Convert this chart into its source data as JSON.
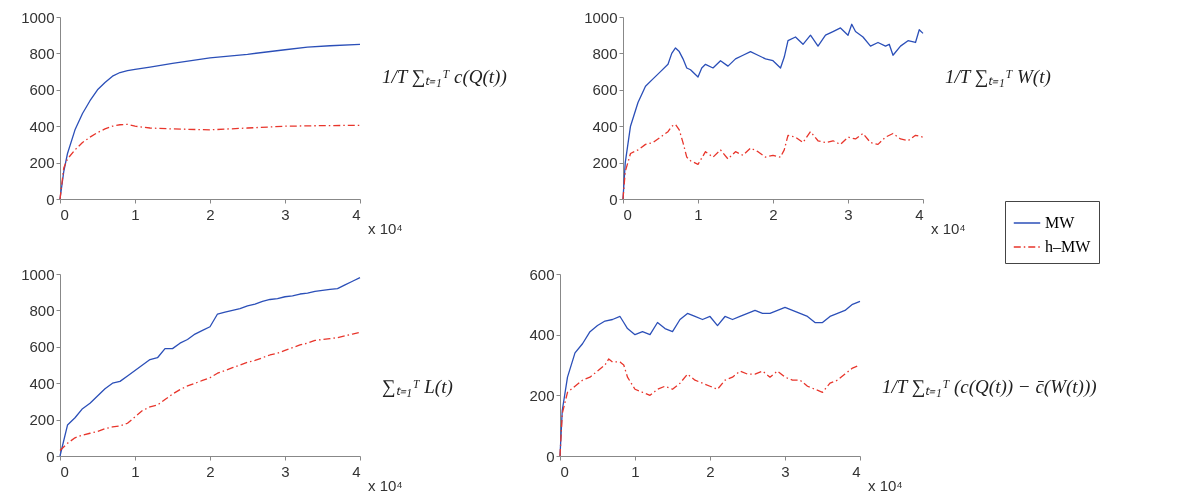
{
  "chart_data": [
    {
      "type": "line",
      "ylabel": "1/T ∑ₜ₌₁ᵀ c(Q(t))",
      "annotations": [
        "x 10⁴"
      ],
      "xlim": [
        0,
        4
      ],
      "xticks": [
        0,
        1,
        2,
        3,
        4
      ],
      "ylim": [
        0,
        1000
      ],
      "yticks": [
        0,
        200,
        400,
        600,
        800,
        1000
      ],
      "grid": false,
      "legend": false,
      "series": [
        {
          "color": "#2b4fb8",
          "line_style": "solid",
          "x": [
            0,
            0.05,
            0.1,
            0.2,
            0.3,
            0.4,
            0.5,
            0.6,
            0.7,
            0.8,
            0.9,
            1.0,
            1.2,
            1.5,
            2.0,
            2.5,
            3.0,
            3.3,
            3.6,
            4.0
          ],
          "values": [
            0,
            150,
            250,
            380,
            470,
            540,
            600,
            640,
            675,
            695,
            705,
            712,
            725,
            745,
            775,
            795,
            820,
            835,
            842,
            850
          ]
        },
        {
          "color": "#e8352b",
          "line_style": "dashed",
          "x": [
            0,
            0.05,
            0.1,
            0.2,
            0.3,
            0.4,
            0.5,
            0.6,
            0.7,
            0.8,
            0.9,
            1.0,
            1.2,
            1.5,
            2.0,
            2.5,
            3.0,
            3.5,
            4.0
          ],
          "values": [
            0,
            170,
            220,
            270,
            310,
            340,
            365,
            385,
            400,
            408,
            410,
            400,
            390,
            385,
            380,
            390,
            400,
            403,
            405
          ]
        }
      ]
    },
    {
      "type": "line",
      "ylabel": "1/T ∑ₜ₌₁ᵀ W(t)",
      "annotations": [
        "x 10⁴"
      ],
      "xlim": [
        0,
        4
      ],
      "xticks": [
        0,
        1,
        2,
        3,
        4
      ],
      "ylim": [
        0,
        1000
      ],
      "yticks": [
        0,
        200,
        400,
        600,
        800,
        1000
      ],
      "grid": false,
      "legend": "right",
      "series": [
        {
          "name": "MW",
          "color": "#2b4fb8",
          "line_style": "solid",
          "x": [
            0,
            0.03,
            0.1,
            0.2,
            0.3,
            0.4,
            0.5,
            0.6,
            0.65,
            0.7,
            0.75,
            0.8,
            0.85,
            0.9,
            1.0,
            1.05,
            1.1,
            1.2,
            1.3,
            1.4,
            1.5,
            1.6,
            1.7,
            1.8,
            1.9,
            2.0,
            2.1,
            2.15,
            2.2,
            2.3,
            2.4,
            2.5,
            2.6,
            2.7,
            2.8,
            2.9,
            3.0,
            3.05,
            3.1,
            3.2,
            3.3,
            3.4,
            3.5,
            3.55,
            3.6,
            3.7,
            3.8,
            3.9,
            3.95,
            4.0
          ],
          "values": [
            0,
            200,
            400,
            530,
            620,
            660,
            700,
            740,
            800,
            830,
            810,
            770,
            720,
            710,
            670,
            720,
            740,
            720,
            760,
            730,
            770,
            790,
            810,
            790,
            770,
            760,
            720,
            780,
            870,
            890,
            850,
            900,
            840,
            900,
            920,
            940,
            900,
            960,
            920,
            890,
            840,
            860,
            840,
            850,
            790,
            840,
            870,
            860,
            930,
            910
          ]
        },
        {
          "name": "h–MW",
          "color": "#e8352b",
          "line_style": "dashed",
          "x": [
            0,
            0.03,
            0.1,
            0.2,
            0.3,
            0.4,
            0.5,
            0.6,
            0.65,
            0.7,
            0.75,
            0.8,
            0.85,
            0.9,
            1.0,
            1.1,
            1.2,
            1.3,
            1.4,
            1.5,
            1.6,
            1.7,
            1.8,
            1.9,
            2.0,
            2.1,
            2.15,
            2.2,
            2.3,
            2.4,
            2.5,
            2.6,
            2.7,
            2.8,
            2.9,
            3.0,
            3.1,
            3.2,
            3.3,
            3.4,
            3.5,
            3.6,
            3.7,
            3.8,
            3.9,
            4.0
          ],
          "values": [
            0,
            150,
            250,
            270,
            300,
            310,
            340,
            370,
            400,
            410,
            380,
            310,
            230,
            210,
            190,
            260,
            230,
            270,
            220,
            260,
            240,
            280,
            260,
            230,
            240,
            230,
            270,
            350,
            340,
            310,
            370,
            320,
            310,
            320,
            300,
            340,
            330,
            360,
            310,
            300,
            340,
            360,
            330,
            320,
            350,
            340
          ]
        }
      ]
    },
    {
      "type": "line",
      "ylabel": "∑ₜ₌₁ᵀ L(t)",
      "annotations": [
        "x 10⁴"
      ],
      "xlim": [
        0,
        4
      ],
      "xticks": [
        0,
        1,
        2,
        3,
        4
      ],
      "ylim": [
        0,
        1000
      ],
      "yticks": [
        0,
        200,
        400,
        600,
        800,
        1000
      ],
      "grid": false,
      "legend": false,
      "series": [
        {
          "color": "#2b4fb8",
          "line_style": "solid",
          "x": [
            0,
            0.1,
            0.2,
            0.3,
            0.4,
            0.5,
            0.6,
            0.7,
            0.8,
            0.9,
            1.0,
            1.1,
            1.2,
            1.3,
            1.4,
            1.5,
            1.6,
            1.7,
            1.8,
            1.9,
            2.0,
            2.1,
            2.2,
            2.3,
            2.4,
            2.5,
            2.6,
            2.7,
            2.8,
            2.9,
            3.0,
            3.1,
            3.2,
            3.3,
            3.4,
            3.5,
            3.6,
            3.7,
            3.8,
            3.9,
            4.0
          ],
          "values": [
            0,
            170,
            210,
            260,
            290,
            330,
            370,
            400,
            410,
            440,
            470,
            500,
            530,
            540,
            590,
            590,
            620,
            640,
            670,
            690,
            710,
            780,
            790,
            800,
            810,
            825,
            835,
            850,
            860,
            865,
            875,
            880,
            890,
            895,
            905,
            910,
            915,
            920,
            940,
            960,
            980
          ]
        },
        {
          "color": "#e8352b",
          "line_style": "dashed",
          "x": [
            0,
            0.1,
            0.2,
            0.3,
            0.4,
            0.5,
            0.6,
            0.7,
            0.8,
            0.9,
            1.0,
            1.1,
            1.2,
            1.3,
            1.4,
            1.5,
            1.6,
            1.7,
            1.8,
            1.9,
            2.0,
            2.1,
            2.2,
            2.3,
            2.4,
            2.5,
            2.6,
            2.7,
            2.8,
            2.9,
            3.0,
            3.1,
            3.2,
            3.3,
            3.4,
            3.5,
            3.6,
            3.7,
            3.8,
            3.9,
            4.0
          ],
          "values": [
            30,
            70,
            100,
            115,
            125,
            135,
            150,
            160,
            165,
            180,
            215,
            250,
            270,
            280,
            310,
            340,
            365,
            385,
            400,
            415,
            430,
            455,
            470,
            485,
            500,
            515,
            525,
            540,
            555,
            565,
            580,
            595,
            610,
            620,
            635,
            640,
            645,
            650,
            660,
            670,
            680
          ]
        }
      ]
    },
    {
      "type": "line",
      "ylabel": "1/T ∑ₜ₌₁ᵀ (c(Q(t)) − c̄(W(t)))",
      "annotations": [
        "x 10⁴"
      ],
      "xlim": [
        0,
        4
      ],
      "xticks": [
        0,
        1,
        2,
        3,
        4
      ],
      "ylim": [
        0,
        600
      ],
      "yticks": [
        0,
        200,
        400,
        600
      ],
      "grid": false,
      "legend": false,
      "series": [
        {
          "color": "#2b4fb8",
          "line_style": "solid",
          "x": [
            0,
            0.03,
            0.1,
            0.2,
            0.3,
            0.4,
            0.5,
            0.6,
            0.7,
            0.8,
            0.85,
            0.9,
            1.0,
            1.1,
            1.2,
            1.3,
            1.4,
            1.5,
            1.6,
            1.7,
            1.8,
            1.9,
            2.0,
            2.1,
            2.2,
            2.3,
            2.4,
            2.5,
            2.6,
            2.7,
            2.8,
            2.9,
            3.0,
            3.1,
            3.2,
            3.3,
            3.4,
            3.5,
            3.6,
            3.7,
            3.8,
            3.9,
            4.0
          ],
          "values": [
            0,
            150,
            260,
            340,
            370,
            410,
            430,
            445,
            450,
            460,
            440,
            420,
            400,
            410,
            400,
            440,
            420,
            410,
            450,
            470,
            460,
            450,
            460,
            430,
            460,
            450,
            460,
            470,
            480,
            470,
            470,
            480,
            490,
            480,
            470,
            460,
            440,
            440,
            460,
            470,
            480,
            500,
            510
          ]
        },
        {
          "color": "#e8352b",
          "line_style": "dashed",
          "x": [
            0,
            0.03,
            0.1,
            0.2,
            0.3,
            0.4,
            0.5,
            0.6,
            0.65,
            0.7,
            0.8,
            0.85,
            0.9,
            1.0,
            1.1,
            1.2,
            1.3,
            1.4,
            1.5,
            1.6,
            1.7,
            1.8,
            1.9,
            2.0,
            2.1,
            2.2,
            2.3,
            2.4,
            2.5,
            2.6,
            2.7,
            2.8,
            2.9,
            3.0,
            3.1,
            3.2,
            3.3,
            3.4,
            3.5,
            3.6,
            3.7,
            3.8,
            3.9,
            4.0
          ],
          "values": [
            0,
            140,
            210,
            230,
            250,
            260,
            280,
            300,
            320,
            310,
            310,
            300,
            260,
            220,
            210,
            200,
            220,
            230,
            220,
            240,
            270,
            250,
            240,
            230,
            220,
            250,
            260,
            280,
            270,
            270,
            280,
            260,
            280,
            260,
            250,
            250,
            230,
            220,
            210,
            240,
            250,
            270,
            290,
            300
          ]
        }
      ]
    }
  ]
}
